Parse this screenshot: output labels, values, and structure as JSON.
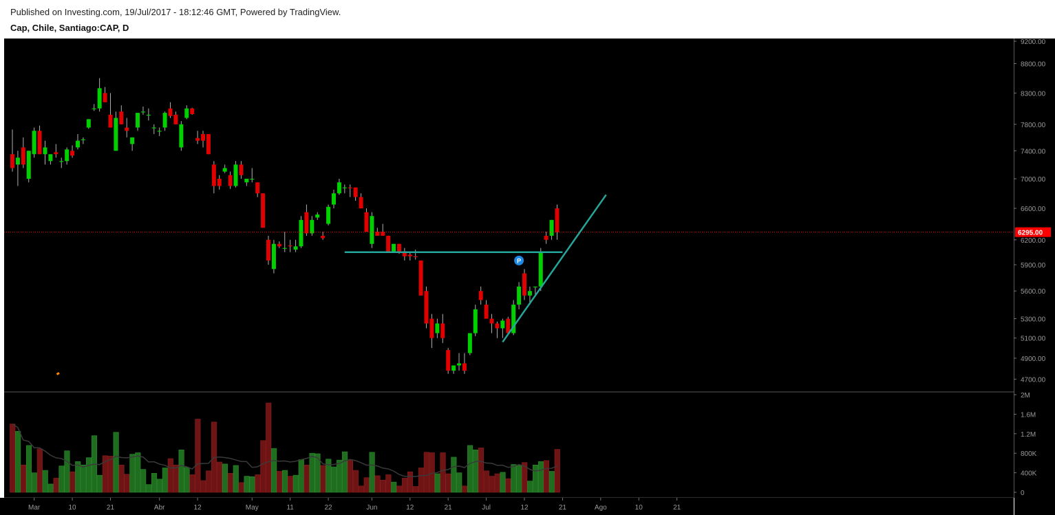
{
  "header": {
    "published": "Published on Investing.com, 19/Jul/2017 - 18:12:46 GMT, Powered by TradingView.",
    "symbol": "Cap, Chile, Santiago:CAP, D"
  },
  "colors": {
    "background": "#000000",
    "up": "#00d000",
    "down": "#e00000",
    "volume_up": "#1f6e1f",
    "volume_down": "#6e1414",
    "trendline": "#26a69a",
    "last_price": "#ff0000",
    "marker": "#1e88e5",
    "axis_text": "#9a9a9a"
  },
  "chart_data": {
    "type": "candlestick",
    "title": "Cap, Chile, Santiago:CAP, D",
    "price_axis": {
      "ticks": [
        "9200.00",
        "8800.00",
        "8300.00",
        "7800.00",
        "7400.00",
        "7000.00",
        "6600.00",
        "6200.00",
        "5900.00",
        "5600.00",
        "5300.00",
        "5100.00",
        "4900.00",
        "4700.00"
      ],
      "ylim": [
        4620,
        9200
      ],
      "scale": "log"
    },
    "volume_axis": {
      "ticks": [
        "2M",
        "1.6M",
        "1.2M",
        "800K",
        "400K",
        "0"
      ],
      "ylim": [
        0,
        2000000
      ]
    },
    "x_tick_labels": [
      {
        "label": "Mar",
        "index": 4
      },
      {
        "label": "10",
        "index": 11
      },
      {
        "label": "21",
        "index": 18
      },
      {
        "label": "Abr",
        "index": 27
      },
      {
        "label": "12",
        "index": 34
      },
      {
        "label": "May",
        "index": 44
      },
      {
        "label": "11",
        "index": 51
      },
      {
        "label": "22",
        "index": 58
      },
      {
        "label": "Jun",
        "index": 66
      },
      {
        "label": "12",
        "index": 73
      },
      {
        "label": "21",
        "index": 80
      },
      {
        "label": "Jul",
        "index": 87
      },
      {
        "label": "12",
        "index": 94
      },
      {
        "label": "21",
        "index": 101
      },
      {
        "label": "Ago",
        "index": 108
      },
      {
        "label": "10",
        "index": 115
      },
      {
        "label": "21",
        "index": 122
      }
    ],
    "last_price": {
      "value": 6295,
      "label": "6295.00"
    },
    "marker_label": "P",
    "marker_index": 93,
    "marker_price": 5950,
    "trendlines": [
      {
        "start": {
          "index": 61,
          "price": 6050
        },
        "end": {
          "index": 101,
          "price": 6050
        }
      },
      {
        "start": {
          "index": 90,
          "price": 5060
        },
        "end": {
          "index": 109,
          "price": 6780
        }
      }
    ],
    "candles": [
      {
        "o": 7350,
        "h": 7720,
        "l": 7100,
        "c": 7150,
        "v": 1400000
      },
      {
        "o": 7200,
        "h": 7400,
        "l": 6900,
        "c": 7300,
        "v": 1250000
      },
      {
        "o": 7450,
        "h": 7600,
        "l": 7150,
        "c": 7200,
        "v": 560000
      },
      {
        "o": 7000,
        "h": 7400,
        "l": 6950,
        "c": 7400,
        "v": 960000
      },
      {
        "o": 7350,
        "h": 7750,
        "l": 7300,
        "c": 7700,
        "v": 400000
      },
      {
        "o": 7700,
        "h": 7780,
        "l": 7350,
        "c": 7350,
        "v": 890000
      },
      {
        "o": 7350,
        "h": 7550,
        "l": 7200,
        "c": 7450,
        "v": 450000
      },
      {
        "o": 7250,
        "h": 7350,
        "l": 7200,
        "c": 7350,
        "v": 170000
      },
      {
        "o": 7380,
        "h": 7500,
        "l": 7300,
        "c": 7350,
        "v": 290000
      },
      {
        "o": 7250,
        "h": 7300,
        "l": 7150,
        "c": 7250,
        "v": 540000
      },
      {
        "o": 7250,
        "h": 7450,
        "l": 7200,
        "c": 7420,
        "v": 850000
      },
      {
        "o": 7400,
        "h": 7480,
        "l": 7300,
        "c": 7330,
        "v": 420000
      },
      {
        "o": 7450,
        "h": 7650,
        "l": 7420,
        "c": 7550,
        "v": 630000
      },
      {
        "o": 7560,
        "h": 7600,
        "l": 7500,
        "c": 7570,
        "v": 560000
      },
      {
        "o": 7750,
        "h": 7880,
        "l": 7730,
        "c": 7880,
        "v": 710000
      },
      {
        "o": 8050,
        "h": 8120,
        "l": 8010,
        "c": 8050,
        "v": 1160000
      },
      {
        "o": 8050,
        "h": 8550,
        "l": 8000,
        "c": 8380,
        "v": 350000
      },
      {
        "o": 8300,
        "h": 8400,
        "l": 8150,
        "c": 8150,
        "v": 750000
      },
      {
        "o": 7950,
        "h": 8300,
        "l": 7750,
        "c": 7750,
        "v": 740000
      },
      {
        "o": 7400,
        "h": 8000,
        "l": 7400,
        "c": 7900,
        "v": 1230000
      },
      {
        "o": 8000,
        "h": 8100,
        "l": 7800,
        "c": 7800,
        "v": 560000
      },
      {
        "o": 7750,
        "h": 7900,
        "l": 7600,
        "c": 7700,
        "v": 370000
      },
      {
        "o": 7500,
        "h": 7600,
        "l": 7400,
        "c": 7600,
        "v": 780000
      },
      {
        "o": 7750,
        "h": 7980,
        "l": 7700,
        "c": 7980,
        "v": 810000
      },
      {
        "o": 8000,
        "h": 8080,
        "l": 7950,
        "c": 8000,
        "v": 470000
      },
      {
        "o": 7950,
        "h": 8050,
        "l": 7860,
        "c": 7950,
        "v": 160000
      },
      {
        "o": 7750,
        "h": 7800,
        "l": 7650,
        "c": 7750,
        "v": 390000
      },
      {
        "o": 7700,
        "h": 7750,
        "l": 7620,
        "c": 7700,
        "v": 270000
      },
      {
        "o": 7750,
        "h": 8000,
        "l": 7700,
        "c": 7980,
        "v": 500000
      },
      {
        "o": 8050,
        "h": 8150,
        "l": 7900,
        "c": 7930,
        "v": 690000
      },
      {
        "o": 7950,
        "h": 8000,
        "l": 7800,
        "c": 7800,
        "v": 560000
      },
      {
        "o": 7450,
        "h": 7850,
        "l": 7400,
        "c": 7800,
        "v": 870000
      },
      {
        "o": 7900,
        "h": 8100,
        "l": 7880,
        "c": 8050,
        "v": 510000
      },
      {
        "o": 8050,
        "h": 8060,
        "l": 7950,
        "c": 7960,
        "v": 360000
      },
      {
        "o": 7590,
        "h": 7700,
        "l": 7500,
        "c": 7550,
        "v": 1500000
      },
      {
        "o": 7650,
        "h": 7700,
        "l": 7450,
        "c": 7550,
        "v": 240000
      },
      {
        "o": 7650,
        "h": 7650,
        "l": 7350,
        "c": 7350,
        "v": 440000
      },
      {
        "o": 7200,
        "h": 7250,
        "l": 6800,
        "c": 6900,
        "v": 1440000
      },
      {
        "o": 7000,
        "h": 7050,
        "l": 6850,
        "c": 6900,
        "v": 620000
      },
      {
        "o": 7100,
        "h": 7200,
        "l": 7080,
        "c": 7150,
        "v": 580000
      },
      {
        "o": 7050,
        "h": 7100,
        "l": 6860,
        "c": 6900,
        "v": 390000
      },
      {
        "o": 6900,
        "h": 7250,
        "l": 6880,
        "c": 7200,
        "v": 550000
      },
      {
        "o": 7200,
        "h": 7250,
        "l": 7000,
        "c": 7050,
        "v": 200000
      },
      {
        "o": 6950,
        "h": 7000,
        "l": 6900,
        "c": 7000,
        "v": 330000
      },
      {
        "o": 7000,
        "h": 7150,
        "l": 6950,
        "c": 7000,
        "v": 320000
      },
      {
        "o": 6950,
        "h": 6950,
        "l": 6750,
        "c": 6800,
        "v": 360000
      },
      {
        "o": 6800,
        "h": 6800,
        "l": 6350,
        "c": 6350,
        "v": 1060000
      },
      {
        "o": 6200,
        "h": 6250,
        "l": 5900,
        "c": 5950,
        "v": 1830000
      },
      {
        "o": 5850,
        "h": 6200,
        "l": 5800,
        "c": 6150,
        "v": 900000
      },
      {
        "o": 6150,
        "h": 6180,
        "l": 6100,
        "c": 6120,
        "v": 430000
      },
      {
        "o": 6100,
        "h": 6300,
        "l": 6050,
        "c": 6100,
        "v": 450000
      },
      {
        "o": 6130,
        "h": 6200,
        "l": 6050,
        "c": 6120,
        "v": 330000
      },
      {
        "o": 6080,
        "h": 6200,
        "l": 6050,
        "c": 6120,
        "v": 350000
      },
      {
        "o": 6120,
        "h": 6500,
        "l": 6100,
        "c": 6450,
        "v": 670000
      },
      {
        "o": 6550,
        "h": 6650,
        "l": 6250,
        "c": 6280,
        "v": 560000
      },
      {
        "o": 6280,
        "h": 6500,
        "l": 6250,
        "c": 6450,
        "v": 800000
      },
      {
        "o": 6480,
        "h": 6550,
        "l": 6450,
        "c": 6520,
        "v": 790000
      },
      {
        "o": 6250,
        "h": 6300,
        "l": 6200,
        "c": 6220,
        "v": 550000
      },
      {
        "o": 6400,
        "h": 6650,
        "l": 6380,
        "c": 6620,
        "v": 680000
      },
      {
        "o": 6650,
        "h": 6850,
        "l": 6600,
        "c": 6800,
        "v": 520000
      },
      {
        "o": 6800,
        "h": 7000,
        "l": 6780,
        "c": 6950,
        "v": 660000
      },
      {
        "o": 6880,
        "h": 6920,
        "l": 6800,
        "c": 6880,
        "v": 830000
      },
      {
        "o": 6880,
        "h": 6920,
        "l": 6750,
        "c": 6870,
        "v": 660000
      },
      {
        "o": 6880,
        "h": 6880,
        "l": 6700,
        "c": 6750,
        "v": 450000
      },
      {
        "o": 6750,
        "h": 6800,
        "l": 6600,
        "c": 6600,
        "v": 130000
      },
      {
        "o": 6550,
        "h": 6600,
        "l": 6300,
        "c": 6300,
        "v": 300000
      },
      {
        "o": 6150,
        "h": 6550,
        "l": 6100,
        "c": 6500,
        "v": 820000
      },
      {
        "o": 6300,
        "h": 6350,
        "l": 6250,
        "c": 6250,
        "v": 340000
      },
      {
        "o": 6300,
        "h": 6400,
        "l": 6250,
        "c": 6250,
        "v": 250000
      },
      {
        "o": 6250,
        "h": 6250,
        "l": 6050,
        "c": 6050,
        "v": 360000
      },
      {
        "o": 6050,
        "h": 6150,
        "l": 6040,
        "c": 6150,
        "v": 210000
      },
      {
        "o": 6150,
        "h": 6150,
        "l": 6030,
        "c": 6050,
        "v": 130000
      },
      {
        "o": 6060,
        "h": 6100,
        "l": 5950,
        "c": 6000,
        "v": 290000
      },
      {
        "o": 6020,
        "h": 6060,
        "l": 5950,
        "c": 6000,
        "v": 420000
      },
      {
        "o": 6000,
        "h": 6080,
        "l": 5960,
        "c": 5990,
        "v": 120000
      },
      {
        "o": 5950,
        "h": 5950,
        "l": 5550,
        "c": 5550,
        "v": 500000
      },
      {
        "o": 5600,
        "h": 5650,
        "l": 5200,
        "c": 5250,
        "v": 820000
      },
      {
        "o": 5300,
        "h": 5350,
        "l": 5000,
        "c": 5100,
        "v": 810000
      },
      {
        "o": 5150,
        "h": 5300,
        "l": 5100,
        "c": 5250,
        "v": 380000
      },
      {
        "o": 5250,
        "h": 5350,
        "l": 5050,
        "c": 5100,
        "v": 810000
      },
      {
        "o": 4980,
        "h": 5000,
        "l": 4750,
        "c": 4780,
        "v": 380000
      },
      {
        "o": 4780,
        "h": 4830,
        "l": 4750,
        "c": 4830,
        "v": 720000
      },
      {
        "o": 4830,
        "h": 4950,
        "l": 4780,
        "c": 4850,
        "v": 400000
      },
      {
        "o": 4850,
        "h": 4950,
        "l": 4750,
        "c": 4780,
        "v": 130000
      },
      {
        "o": 4950,
        "h": 5150,
        "l": 4930,
        "c": 5150,
        "v": 960000
      },
      {
        "o": 5150,
        "h": 5450,
        "l": 5120,
        "c": 5400,
        "v": 870000
      },
      {
        "o": 5600,
        "h": 5650,
        "l": 5450,
        "c": 5500,
        "v": 910000
      },
      {
        "o": 5450,
        "h": 5500,
        "l": 5300,
        "c": 5300,
        "v": 440000
      },
      {
        "o": 5300,
        "h": 5350,
        "l": 5150,
        "c": 5250,
        "v": 330000
      },
      {
        "o": 5250,
        "h": 5270,
        "l": 5100,
        "c": 5200,
        "v": 380000
      },
      {
        "o": 5200,
        "h": 5300,
        "l": 5100,
        "c": 5280,
        "v": 410000
      },
      {
        "o": 5300,
        "h": 5320,
        "l": 5130,
        "c": 5150,
        "v": 280000
      },
      {
        "o": 5150,
        "h": 5500,
        "l": 5130,
        "c": 5450,
        "v": 570000
      },
      {
        "o": 5450,
        "h": 5700,
        "l": 5400,
        "c": 5650,
        "v": 550000
      },
      {
        "o": 5800,
        "h": 5850,
        "l": 5500,
        "c": 5550,
        "v": 610000
      },
      {
        "o": 5550,
        "h": 5650,
        "l": 5450,
        "c": 5600,
        "v": 230000
      },
      {
        "o": 5650,
        "h": 5650,
        "l": 5550,
        "c": 5650,
        "v": 560000
      },
      {
        "o": 5650,
        "h": 6100,
        "l": 5600,
        "c": 6050,
        "v": 630000
      },
      {
        "o": 6250,
        "h": 6300,
        "l": 6150,
        "c": 6200,
        "v": 650000
      },
      {
        "o": 6250,
        "h": 6450,
        "l": 6200,
        "c": 6450,
        "v": 430000
      },
      {
        "o": 6600,
        "h": 6650,
        "l": 6200,
        "c": 6295,
        "v": 880000
      }
    ]
  }
}
